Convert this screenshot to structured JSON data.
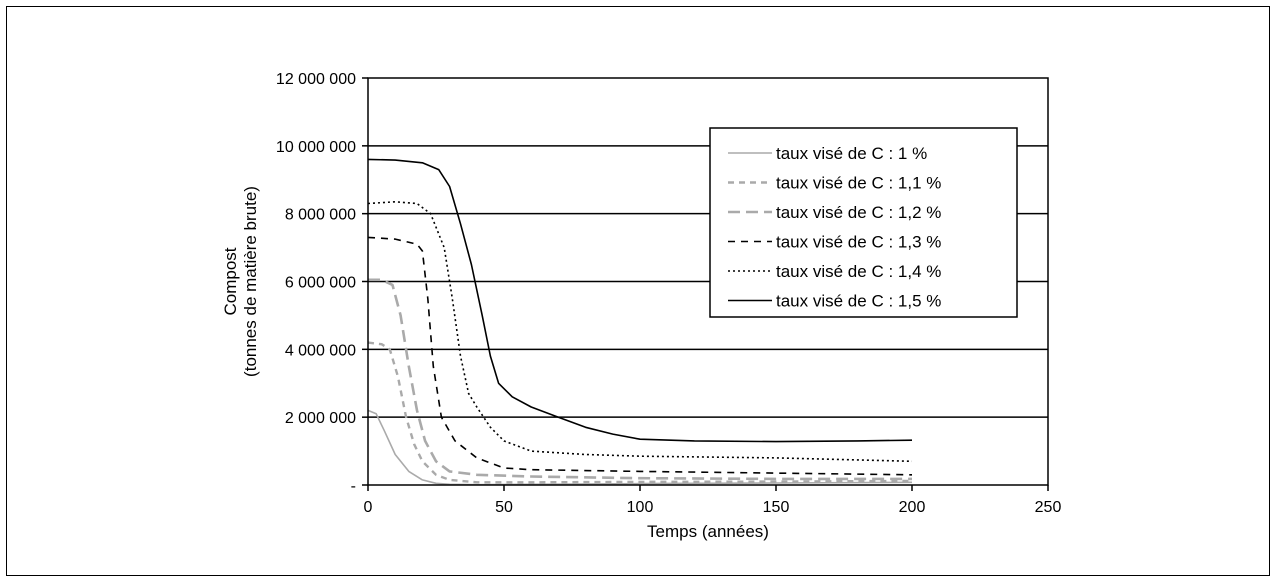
{
  "chart_data": {
    "type": "line",
    "title": "",
    "xlabel": "Temps (années)",
    "ylabel_lines": [
      "Compost",
      "(tonnes de matière brute)"
    ],
    "xlim": [
      0,
      250
    ],
    "ylim": [
      0,
      12000000
    ],
    "x_ticks": [
      0,
      50,
      100,
      150,
      200,
      250
    ],
    "y_ticks": [
      0,
      2000000,
      4000000,
      6000000,
      8000000,
      10000000,
      12000000
    ],
    "y_tick_labels": [
      "-",
      "2 000 000",
      "4 000 000",
      "6 000 000",
      "8 000 000",
      "10 000 000",
      "12 000 000"
    ],
    "grid": "horizontal",
    "legend_position": "top-right",
    "series": [
      {
        "name": "taux visé de C : 1 %",
        "color": "#aaaaaa",
        "dash": "solid",
        "points": [
          [
            0,
            2200000
          ],
          [
            3,
            2100000
          ],
          [
            6,
            1600000
          ],
          [
            10,
            900000
          ],
          [
            15,
            400000
          ],
          [
            20,
            150000
          ],
          [
            25,
            50000
          ],
          [
            30,
            20000
          ],
          [
            40,
            10000
          ],
          [
            60,
            20000
          ],
          [
            100,
            40000
          ],
          [
            150,
            60000
          ],
          [
            200,
            80000
          ]
        ]
      },
      {
        "name": "taux visé de C : 1,1 %",
        "color": "#aaaaaa",
        "dash": "short-dash",
        "points": [
          [
            0,
            4200000
          ],
          [
            5,
            4150000
          ],
          [
            8,
            4000000
          ],
          [
            11,
            3200000
          ],
          [
            14,
            2000000
          ],
          [
            17,
            1200000
          ],
          [
            20,
            700000
          ],
          [
            25,
            300000
          ],
          [
            30,
            150000
          ],
          [
            40,
            80000
          ],
          [
            60,
            80000
          ],
          [
            100,
            90000
          ],
          [
            150,
            100000
          ],
          [
            200,
            120000
          ]
        ]
      },
      {
        "name": "taux visé de C : 1,2 %",
        "color": "#aaaaaa",
        "dash": "long-dash",
        "points": [
          [
            0,
            6050000
          ],
          [
            5,
            6050000
          ],
          [
            9,
            5900000
          ],
          [
            12,
            5000000
          ],
          [
            15,
            3500000
          ],
          [
            18,
            2200000
          ],
          [
            21,
            1300000
          ],
          [
            25,
            700000
          ],
          [
            30,
            400000
          ],
          [
            40,
            300000
          ],
          [
            60,
            250000
          ],
          [
            100,
            200000
          ],
          [
            150,
            180000
          ],
          [
            200,
            180000
          ]
        ]
      },
      {
        "name": "taux visé de C : 1,3 %",
        "color": "#000000",
        "dash": "dash",
        "points": [
          [
            0,
            7300000
          ],
          [
            10,
            7250000
          ],
          [
            18,
            7100000
          ],
          [
            20,
            6900000
          ],
          [
            22,
            5500000
          ],
          [
            24,
            3500000
          ],
          [
            27,
            2000000
          ],
          [
            32,
            1300000
          ],
          [
            40,
            800000
          ],
          [
            50,
            500000
          ],
          [
            60,
            450000
          ],
          [
            100,
            400000
          ],
          [
            150,
            350000
          ],
          [
            200,
            300000
          ]
        ]
      },
      {
        "name": "taux visé de C : 1,4 %",
        "color": "#000000",
        "dash": "dot",
        "points": [
          [
            0,
            8300000
          ],
          [
            10,
            8350000
          ],
          [
            18,
            8300000
          ],
          [
            23,
            8000000
          ],
          [
            28,
            7000000
          ],
          [
            31,
            5500000
          ],
          [
            34,
            3800000
          ],
          [
            37,
            2700000
          ],
          [
            40,
            2300000
          ],
          [
            45,
            1700000
          ],
          [
            50,
            1300000
          ],
          [
            60,
            1000000
          ],
          [
            80,
            900000
          ],
          [
            100,
            850000
          ],
          [
            150,
            800000
          ],
          [
            200,
            700000
          ]
        ]
      },
      {
        "name": "taux visé de C : 1,5 %",
        "color": "#000000",
        "dash": "solid",
        "points": [
          [
            0,
            9600000
          ],
          [
            10,
            9580000
          ],
          [
            20,
            9500000
          ],
          [
            26,
            9300000
          ],
          [
            30,
            8800000
          ],
          [
            34,
            7700000
          ],
          [
            38,
            6500000
          ],
          [
            42,
            5000000
          ],
          [
            45,
            3800000
          ],
          [
            48,
            3000000
          ],
          [
            53,
            2600000
          ],
          [
            60,
            2300000
          ],
          [
            70,
            2000000
          ],
          [
            80,
            1700000
          ],
          [
            90,
            1500000
          ],
          [
            100,
            1350000
          ],
          [
            120,
            1300000
          ],
          [
            150,
            1280000
          ],
          [
            180,
            1300000
          ],
          [
            200,
            1320000
          ]
        ]
      }
    ]
  }
}
